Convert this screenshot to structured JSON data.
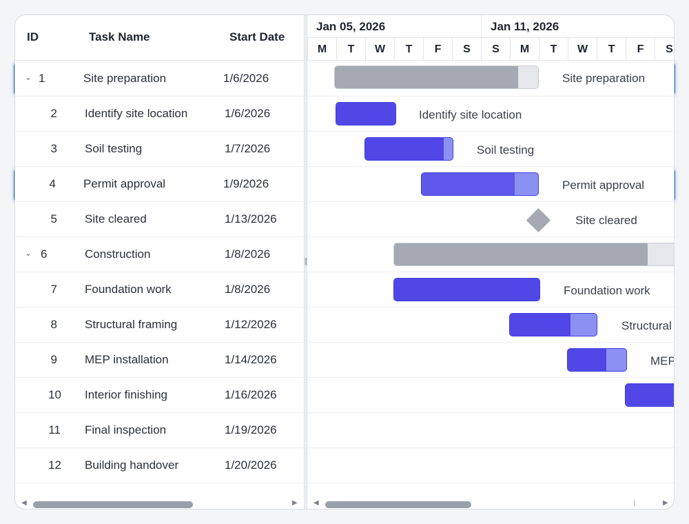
{
  "grid": {
    "headers": {
      "id": "ID",
      "name": "Task Name",
      "start": "Start Date"
    },
    "tasks": [
      {
        "id": "1",
        "name": "Site preparation",
        "start": "1/6/2026"
      },
      {
        "id": "2",
        "name": "Identify site location",
        "start": "1/6/2026"
      },
      {
        "id": "3",
        "name": "Soil testing",
        "start": "1/7/2026"
      },
      {
        "id": "4",
        "name": "Permit approval",
        "start": "1/9/2026"
      },
      {
        "id": "5",
        "name": "Site cleared",
        "start": "1/13/2026"
      },
      {
        "id": "6",
        "name": "Construction",
        "start": "1/8/2026"
      },
      {
        "id": "7",
        "name": "Foundation work",
        "start": "1/8/2026"
      },
      {
        "id": "8",
        "name": "Structural framing",
        "start": "1/12/2026"
      },
      {
        "id": "9",
        "name": "MEP installation",
        "start": "1/14/2026"
      },
      {
        "id": "10",
        "name": "Interior finishing",
        "start": "1/16/2026"
      },
      {
        "id": "11",
        "name": "Final inspection",
        "start": "1/19/2026"
      },
      {
        "id": "12",
        "name": "Building handover",
        "start": "1/20/2026"
      }
    ],
    "expanded_parents": [
      "1",
      "6"
    ],
    "selected_rows": [
      "1",
      "4"
    ]
  },
  "timeline": {
    "weeks": [
      "Jan 05, 2026",
      "Jan 11, 2026"
    ],
    "days": [
      "M",
      "T",
      "W",
      "T",
      "F",
      "S",
      "S",
      "M",
      "T",
      "W",
      "T",
      "F",
      "S"
    ]
  },
  "chart": {
    "bar_labels": {
      "1": "Site preparation",
      "2": "Identify site location",
      "3": "Soil testing",
      "4": "Permit approval",
      "5": "Site cleared",
      "7": "Foundation work",
      "8": "Structural framing",
      "9": "MEP installation"
    }
  },
  "colors": {
    "selection_border": "#1565d8",
    "task_bar": "#5147e6",
    "task_remaining": "#8b91f3",
    "parent_bar": "#a4a9b3"
  },
  "icons": {
    "expand": "chevron-down-icon",
    "splitter": "grip-icon",
    "scroll_left": "arrow-left-icon",
    "scroll_right": "arrow-right-icon"
  }
}
